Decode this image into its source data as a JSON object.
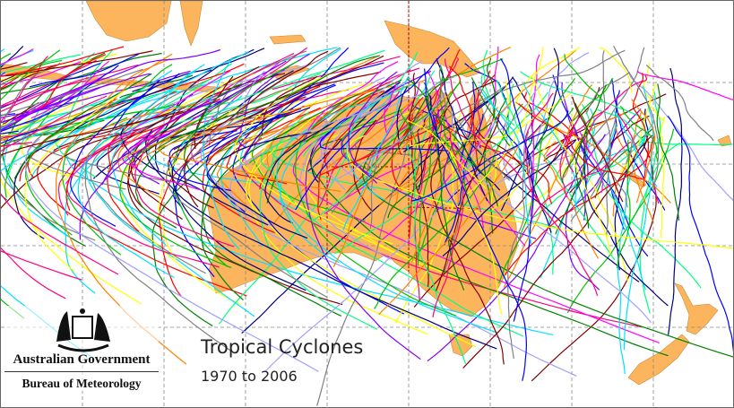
{
  "map": {
    "title": "Tropical Cyclones",
    "subtitle": "1970 to 2006",
    "region": "Australian region",
    "land_color": "#FCB55C",
    "grid_color": "#888888",
    "border_color": "#B00000",
    "track_colors": [
      "#ff0000",
      "#0000ff",
      "#00c000",
      "#ff00ff",
      "#00e0ff",
      "#ffff00",
      "#ff8000",
      "#8000ff",
      "#000080",
      "#008000",
      "#808080",
      "#ff0080",
      "#00ff80",
      "#800000",
      "#a0a0ff"
    ]
  },
  "logo": {
    "government": "Australian Government",
    "agency": "Bureau of Meteorology"
  }
}
